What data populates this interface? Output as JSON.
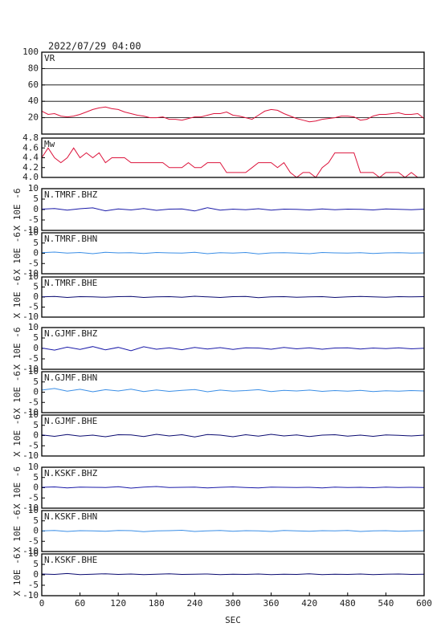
{
  "chart_data": [
    {
      "type": "line",
      "title": "2022/07/29 04:00",
      "grid": true,
      "ylim": [
        0,
        100
      ],
      "yticks": [
        20,
        40,
        60,
        80,
        100
      ],
      "x": [
        0,
        10,
        20,
        30,
        40,
        50,
        60,
        70,
        80,
        90,
        100,
        110,
        120,
        130,
        140,
        150,
        160,
        170,
        180,
        190,
        200,
        210,
        220,
        230,
        240,
        250,
        260,
        270,
        280,
        290,
        300,
        310,
        320,
        330,
        340,
        350,
        360,
        370,
        380,
        390,
        400,
        410,
        420,
        430,
        440,
        450,
        460,
        470,
        480,
        490,
        500,
        510,
        520,
        530,
        540,
        550,
        560,
        570,
        580,
        590,
        600
      ],
      "series": [
        {
          "name": "VR",
          "color": "#dc143c",
          "values": [
            28,
            24,
            25,
            22,
            21,
            22,
            24,
            27,
            30,
            32,
            33,
            31,
            30,
            27,
            25,
            23,
            22,
            20,
            20,
            21,
            18,
            18,
            17,
            19,
            21,
            21,
            23,
            25,
            25,
            27,
            23,
            22,
            20,
            18,
            23,
            28,
            30,
            29,
            25,
            22,
            19,
            17,
            15,
            16,
            18,
            19,
            20,
            22,
            22,
            21,
            17,
            18,
            22,
            24,
            24,
            25,
            26,
            24,
            24,
            25,
            19
          ]
        }
      ]
    },
    {
      "type": "line",
      "grid": false,
      "ylim": [
        4.0,
        4.8
      ],
      "yticks": [
        {
          "value": 4,
          "label": "4.0"
        },
        4.2,
        4.4,
        4.6,
        4.8
      ],
      "x": [
        0,
        10,
        20,
        30,
        40,
        50,
        60,
        70,
        80,
        90,
        100,
        110,
        120,
        130,
        140,
        150,
        160,
        170,
        180,
        190,
        200,
        210,
        220,
        230,
        240,
        250,
        260,
        270,
        280,
        290,
        300,
        310,
        320,
        330,
        340,
        350,
        360,
        370,
        380,
        390,
        400,
        410,
        420,
        430,
        440,
        450,
        460,
        470,
        480,
        490,
        500,
        510,
        520,
        530,
        540,
        550,
        560,
        570,
        580,
        590,
        600
      ],
      "series": [
        {
          "name": "Mw",
          "color": "#dc143c",
          "values": [
            4.4,
            4.6,
            4.4,
            4.3,
            4.4,
            4.6,
            4.4,
            4.5,
            4.4,
            4.5,
            4.3,
            4.4,
            4.4,
            4.4,
            4.3,
            4.3,
            4.3,
            4.3,
            4.3,
            4.3,
            4.2,
            4.2,
            4.2,
            4.3,
            4.2,
            4.2,
            4.3,
            4.3,
            4.3,
            4.1,
            4.1,
            4.1,
            4.1,
            4.2,
            4.3,
            4.3,
            4.3,
            4.2,
            4.3,
            4.1,
            4.0,
            4.1,
            4.1,
            4.0,
            4.2,
            4.3,
            4.5,
            4.5,
            4.5,
            4.5,
            4.1,
            4.1,
            4.1,
            4.0,
            4.1,
            4.1,
            4.1,
            4.0,
            4.1,
            4.0,
            4.0
          ]
        }
      ]
    },
    {
      "type": "line",
      "ylabel": "X 10E -6",
      "ylim": [
        -10,
        10
      ],
      "yticks": [
        -10,
        -5,
        0,
        5,
        10
      ],
      "x": [
        0,
        20,
        40,
        60,
        80,
        100,
        120,
        140,
        160,
        180,
        200,
        220,
        240,
        260,
        280,
        300,
        320,
        340,
        360,
        380,
        400,
        420,
        440,
        460,
        480,
        500,
        520,
        540,
        560,
        580,
        600
      ],
      "series": [
        {
          "name": "N.TMRF.BHZ",
          "color": "#1a1aa8",
          "values": [
            0.2,
            0.5,
            -0.3,
            0.4,
            0.8,
            -0.6,
            0.3,
            -0.2,
            0.5,
            -0.4,
            0.2,
            0.3,
            -0.7,
            0.9,
            -0.3,
            0.2,
            -0.1,
            0.4,
            -0.3,
            0.2,
            0.1,
            -0.2,
            0.3,
            -0.1,
            0.2,
            0.1,
            -0.2,
            0.3,
            0.1,
            -0.1,
            0.2
          ]
        }
      ]
    },
    {
      "type": "line",
      "ylabel": "X 10E -6",
      "ylim": [
        -10,
        10
      ],
      "yticks": [
        -10,
        -5,
        0,
        5,
        10
      ],
      "x": [
        0,
        20,
        40,
        60,
        80,
        100,
        120,
        140,
        160,
        180,
        200,
        220,
        240,
        260,
        280,
        300,
        320,
        340,
        360,
        380,
        400,
        420,
        440,
        460,
        480,
        500,
        520,
        540,
        560,
        580,
        600
      ],
      "series": [
        {
          "name": "N.TMRF.BHN",
          "color": "#3a8ee6",
          "values": [
            0.3,
            0.6,
            0.1,
            0.4,
            -0.2,
            0.5,
            0.2,
            0.3,
            -0.1,
            0.4,
            0.2,
            0.1,
            0.5,
            -0.2,
            0.3,
            0.1,
            0.4,
            -0.3,
            0.2,
            0.3,
            0.1,
            -0.2,
            0.4,
            0.2,
            0.1,
            0.3,
            -0.1,
            0.2,
            0.3,
            0.1,
            0.2
          ]
        }
      ]
    },
    {
      "type": "line",
      "ylabel": "X 10E -6",
      "ylim": [
        -10,
        10
      ],
      "yticks": [
        -10,
        -5,
        0,
        5,
        10
      ],
      "x": [
        0,
        20,
        40,
        60,
        80,
        100,
        120,
        140,
        160,
        180,
        200,
        220,
        240,
        260,
        280,
        300,
        320,
        340,
        360,
        380,
        400,
        420,
        440,
        460,
        480,
        500,
        520,
        540,
        560,
        580,
        600
      ],
      "series": [
        {
          "name": "N.TMRF.BHE",
          "color": "#0a0a70",
          "values": [
            0.1,
            0.3,
            -0.2,
            0.2,
            0.1,
            -0.1,
            0.2,
            0.3,
            -0.2,
            0.1,
            0.2,
            -0.1,
            0.4,
            0.1,
            -0.2,
            0.2,
            0.3,
            -0.3,
            0.1,
            0.2,
            -0.1,
            0.1,
            0.2,
            -0.2,
            0.1,
            0.3,
            0.1,
            -0.1,
            0.2,
            0.1,
            0.2
          ]
        }
      ]
    },
    {
      "type": "line",
      "ylabel": "X 10E -6",
      "ylim": [
        -10,
        10
      ],
      "yticks": [
        -10,
        -5,
        0,
        5,
        10
      ],
      "x": [
        0,
        20,
        40,
        60,
        80,
        100,
        120,
        140,
        160,
        180,
        200,
        220,
        240,
        260,
        280,
        300,
        320,
        340,
        360,
        380,
        400,
        420,
        440,
        460,
        480,
        500,
        520,
        540,
        560,
        580,
        600
      ],
      "series": [
        {
          "name": "N.GJMF.BHZ",
          "color": "#1a1aa8",
          "values": [
            0.2,
            -0.8,
            0.6,
            -0.5,
            0.9,
            -0.7,
            0.5,
            -1.1,
            0.8,
            -0.4,
            0.3,
            -0.6,
            0.5,
            -0.3,
            0.4,
            -0.5,
            0.3,
            0.2,
            -0.4,
            0.5,
            -0.2,
            0.3,
            -0.4,
            0.2,
            0.3,
            -0.3,
            0.2,
            -0.1,
            0.3,
            -0.2,
            0.1
          ]
        }
      ]
    },
    {
      "type": "line",
      "ylabel": "X 10E -6",
      "ylim": [
        -10,
        10
      ],
      "yticks": [
        -10,
        -5,
        0,
        5,
        10
      ],
      "x": [
        0,
        20,
        40,
        60,
        80,
        100,
        120,
        140,
        160,
        180,
        200,
        220,
        240,
        260,
        280,
        300,
        320,
        340,
        360,
        380,
        400,
        420,
        440,
        460,
        480,
        500,
        520,
        540,
        560,
        580,
        600
      ],
      "series": [
        {
          "name": "N.GJMF.BHN",
          "color": "#3a8ee6",
          "values": [
            1.0,
            1.8,
            0.5,
            1.4,
            0.2,
            1.2,
            0.6,
            1.5,
            0.3,
            1.1,
            0.4,
            0.9,
            1.3,
            0.2,
            1.0,
            0.5,
            0.8,
            1.2,
            0.3,
            0.9,
            0.6,
            1.0,
            0.4,
            0.8,
            0.5,
            0.9,
            0.3,
            0.7,
            0.5,
            0.8,
            0.6
          ]
        }
      ]
    },
    {
      "type": "line",
      "ylabel": "X 10E -6",
      "ylim": [
        -10,
        10
      ],
      "yticks": [
        -10,
        -5,
        0,
        5,
        10
      ],
      "x": [
        0,
        20,
        40,
        60,
        80,
        100,
        120,
        140,
        160,
        180,
        200,
        220,
        240,
        260,
        280,
        300,
        320,
        340,
        360,
        380,
        400,
        420,
        440,
        460,
        480,
        500,
        520,
        540,
        560,
        580,
        600
      ],
      "series": [
        {
          "name": "N.GJMF.BHE",
          "color": "#0a0a70",
          "values": [
            0.3,
            -0.4,
            0.5,
            -0.3,
            0.2,
            -0.6,
            0.4,
            0.3,
            -0.5,
            0.6,
            -0.2,
            0.4,
            -0.7,
            0.5,
            0.2,
            -0.6,
            0.4,
            -0.3,
            0.6,
            -0.2,
            0.3,
            -0.5,
            0.2,
            0.4,
            -0.3,
            0.2,
            -0.4,
            0.3,
            0.1,
            -0.2,
            0.2
          ]
        }
      ]
    },
    {
      "type": "line",
      "ylabel": "X 10E -6",
      "ylim": [
        -10,
        10
      ],
      "yticks": [
        -10,
        -5,
        0,
        5,
        10
      ],
      "x": [
        0,
        20,
        40,
        60,
        80,
        100,
        120,
        140,
        160,
        180,
        200,
        220,
        240,
        260,
        280,
        300,
        320,
        340,
        360,
        380,
        400,
        420,
        440,
        460,
        480,
        500,
        520,
        540,
        560,
        580,
        600
      ],
      "series": [
        {
          "name": "N.KSKF.BHZ",
          "color": "#1a1aa8",
          "values": [
            0.2,
            0.4,
            -0.1,
            0.3,
            0.2,
            0.1,
            0.5,
            -0.2,
            0.3,
            0.6,
            0.1,
            0.2,
            0.3,
            -0.1,
            0.2,
            0.4,
            0.1,
            -0.1,
            0.3,
            0.2,
            0.1,
            0.2,
            -0.1,
            0.3,
            0.1,
            0.2,
            0.0,
            0.3,
            0.1,
            0.2,
            0.1
          ]
        }
      ]
    },
    {
      "type": "line",
      "ylabel": "X 10E -6",
      "ylim": [
        -10,
        10
      ],
      "yticks": [
        -10,
        -5,
        0,
        5,
        10
      ],
      "x": [
        0,
        20,
        40,
        60,
        80,
        100,
        120,
        140,
        160,
        180,
        200,
        220,
        240,
        260,
        280,
        300,
        320,
        340,
        360,
        380,
        400,
        420,
        440,
        460,
        480,
        500,
        520,
        540,
        560,
        580,
        600
      ],
      "series": [
        {
          "name": "N.KSKF.BHN",
          "color": "#3a8ee6",
          "values": [
            0.1,
            0.3,
            -0.2,
            0.2,
            0.1,
            -0.1,
            0.3,
            0.2,
            -0.3,
            0.1,
            0.2,
            0.4,
            -0.2,
            0.1,
            0.3,
            -0.1,
            0.2,
            0.1,
            -0.2,
            0.3,
            0.1,
            -0.1,
            0.2,
            0.1,
            0.3,
            -0.2,
            0.1,
            0.2,
            -0.1,
            0.1,
            0.2
          ]
        }
      ]
    },
    {
      "type": "line",
      "ylabel": "X 10E -6",
      "ylim": [
        -10,
        10
      ],
      "yticks": [
        -10,
        -5,
        0,
        5,
        10
      ],
      "xlabel": "SEC",
      "xlim": [
        0,
        600
      ],
      "xticks": [
        0,
        60,
        120,
        180,
        240,
        300,
        360,
        420,
        480,
        540,
        600
      ],
      "x": [
        0,
        20,
        40,
        60,
        80,
        100,
        120,
        140,
        160,
        180,
        200,
        220,
        240,
        260,
        280,
        300,
        320,
        340,
        360,
        380,
        400,
        420,
        440,
        460,
        480,
        500,
        520,
        540,
        560,
        580,
        600
      ],
      "series": [
        {
          "name": "N.KSKF.BHE",
          "color": "#0a0a70",
          "values": [
            0.4,
            0.2,
            0.6,
            0.1,
            0.3,
            0.5,
            0.2,
            0.4,
            0.1,
            0.3,
            0.5,
            0.2,
            0.3,
            0.4,
            0.1,
            0.3,
            0.2,
            0.4,
            0.1,
            0.3,
            0.2,
            0.5,
            0.1,
            0.3,
            0.2,
            0.4,
            0.1,
            0.3,
            0.4,
            0.2,
            0.3
          ]
        }
      ]
    }
  ]
}
